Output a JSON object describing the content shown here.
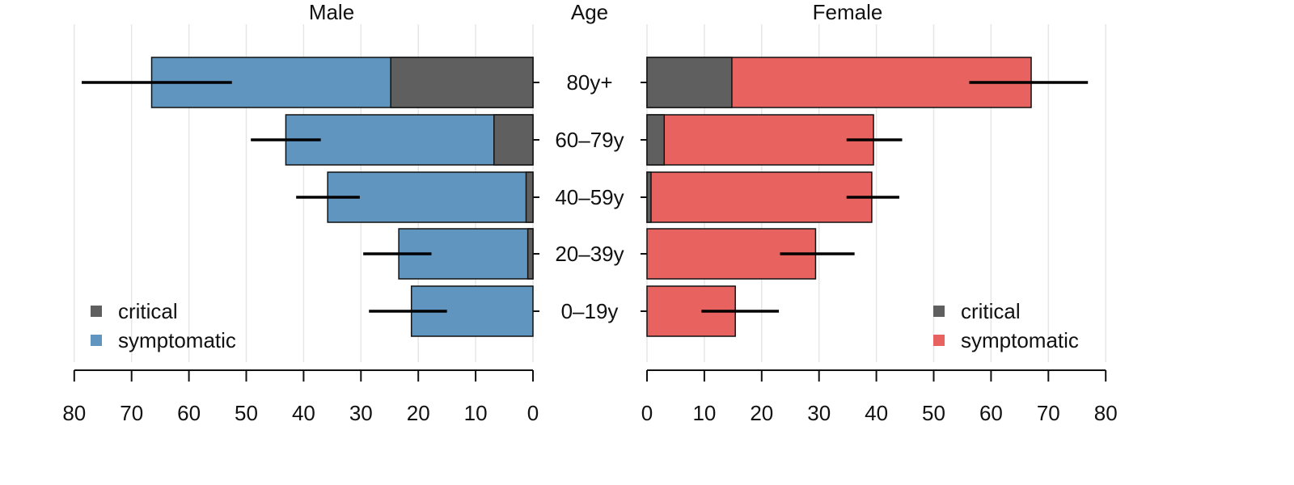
{
  "chart_data": {
    "type": "bar",
    "orientation": "horizontal",
    "layout": "population-pyramid",
    "center_label": "Age",
    "categories": [
      "80y+",
      "60–79y",
      "40–59y",
      "20–39y",
      "0–19y"
    ],
    "xlim": [
      0,
      80
    ],
    "xticks": [
      "80",
      "70",
      "60",
      "50",
      "40",
      "30",
      "20",
      "10",
      "0"
    ],
    "xticks_right": [
      "0",
      "10",
      "20",
      "30",
      "40",
      "50",
      "60",
      "70",
      "80"
    ],
    "grid": true,
    "colors": {
      "critical": "#5f5f5f",
      "male_symptomatic": "#5f95bf",
      "female_symptomatic": "#e8625f"
    },
    "panels": [
      {
        "title": "Male",
        "direction": "left",
        "legend_position": "bottom-left",
        "legend": [
          "critical",
          "symptomatic"
        ],
        "series": [
          {
            "name": "critical",
            "values": [
              24.8,
              6.8,
              1.2,
              0.9,
              0
            ]
          },
          {
            "name": "symptomatic",
            "values": [
              66.5,
              43.1,
              35.8,
              23.4,
              21.2
            ]
          }
        ],
        "error_bars": [
          [
            52.5,
            78.7
          ],
          [
            37,
            49.2
          ],
          [
            30.2,
            41.3
          ],
          [
            17.7,
            29.6
          ],
          [
            15,
            28.6
          ]
        ]
      },
      {
        "title": "Female",
        "direction": "right",
        "legend_position": "bottom-right",
        "legend": [
          "critical",
          "symptomatic"
        ],
        "series": [
          {
            "name": "critical",
            "values": [
              14.8,
              3.0,
              0.7,
              0,
              0
            ]
          },
          {
            "name": "symptomatic",
            "values": [
              67.0,
              39.5,
              39.2,
              29.4,
              15.4
            ]
          }
        ],
        "error_bars": [
          [
            56.2,
            76.9
          ],
          [
            34.8,
            44.5
          ],
          [
            34.8,
            44
          ],
          [
            23.2,
            36.2
          ],
          [
            9.5,
            23
          ]
        ]
      }
    ]
  }
}
